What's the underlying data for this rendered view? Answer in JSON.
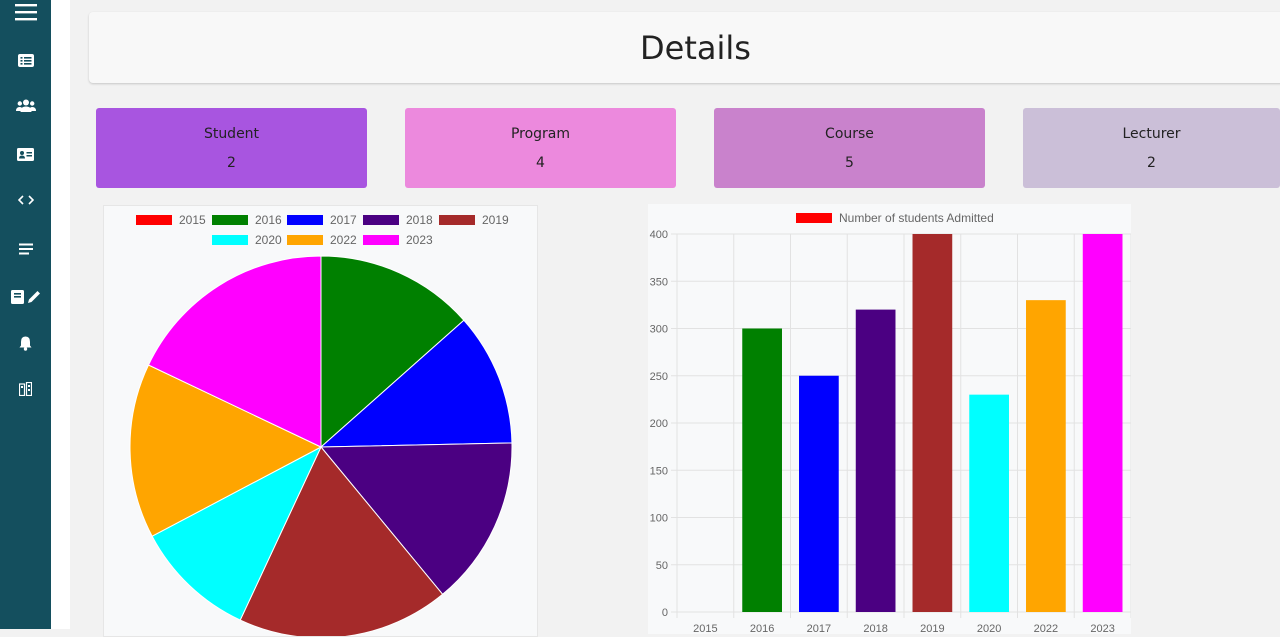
{
  "page": {
    "title": "Details"
  },
  "sidebar": {
    "items": [
      {
        "name": "menu-icon"
      },
      {
        "name": "dashboard-list-icon"
      },
      {
        "name": "users-icon"
      },
      {
        "name": "id-card-icon"
      },
      {
        "name": "code-icon"
      },
      {
        "name": "list-icon"
      },
      {
        "name": "book-edit-icon"
      },
      {
        "name": "bell-icon"
      },
      {
        "name": "building-icon"
      }
    ]
  },
  "cards": [
    {
      "label": "Student",
      "value": "2",
      "color": "#a855e0"
    },
    {
      "label": "Program",
      "value": "4",
      "color": "#ec89dd"
    },
    {
      "label": "Course",
      "value": "5",
      "color": "#c982cc"
    },
    {
      "label": "Lecturer",
      "value": "2",
      "color": "#cbbfd8"
    }
  ],
  "chart_data": [
    {
      "type": "pie",
      "categories": [
        "2015",
        "2016",
        "2017",
        "2018",
        "2019",
        "2020",
        "2022",
        "2023"
      ],
      "values": [
        0,
        300,
        250,
        320,
        400,
        230,
        330,
        400
      ],
      "colors": [
        "#ff0000",
        "#008000",
        "#0000ff",
        "#4b0082",
        "#a52a2a",
        "#00ffff",
        "#ffa500",
        "#ff00ff"
      ],
      "legend": [
        "2015",
        "2016",
        "2017",
        "2018",
        "2019",
        "2020",
        "2022",
        "2023"
      ],
      "legend_placement": "top"
    },
    {
      "type": "bar",
      "title": "",
      "series_label": "Number of students Admitted",
      "legend_color": "#ff0000",
      "categories": [
        "2015",
        "2016",
        "2017",
        "2018",
        "2019",
        "2020",
        "2022",
        "2023"
      ],
      "values": [
        0,
        300,
        250,
        320,
        400,
        230,
        330,
        400
      ],
      "colors": [
        "#ff0000",
        "#008000",
        "#0000ff",
        "#4b0082",
        "#a52a2a",
        "#00ffff",
        "#ffa500",
        "#ff00ff"
      ],
      "ylim": [
        0,
        400
      ],
      "yticks": [
        "0",
        "50",
        "100",
        "150",
        "200",
        "250",
        "300",
        "350",
        "400"
      ],
      "grid": true,
      "legend_placement": "top"
    }
  ]
}
